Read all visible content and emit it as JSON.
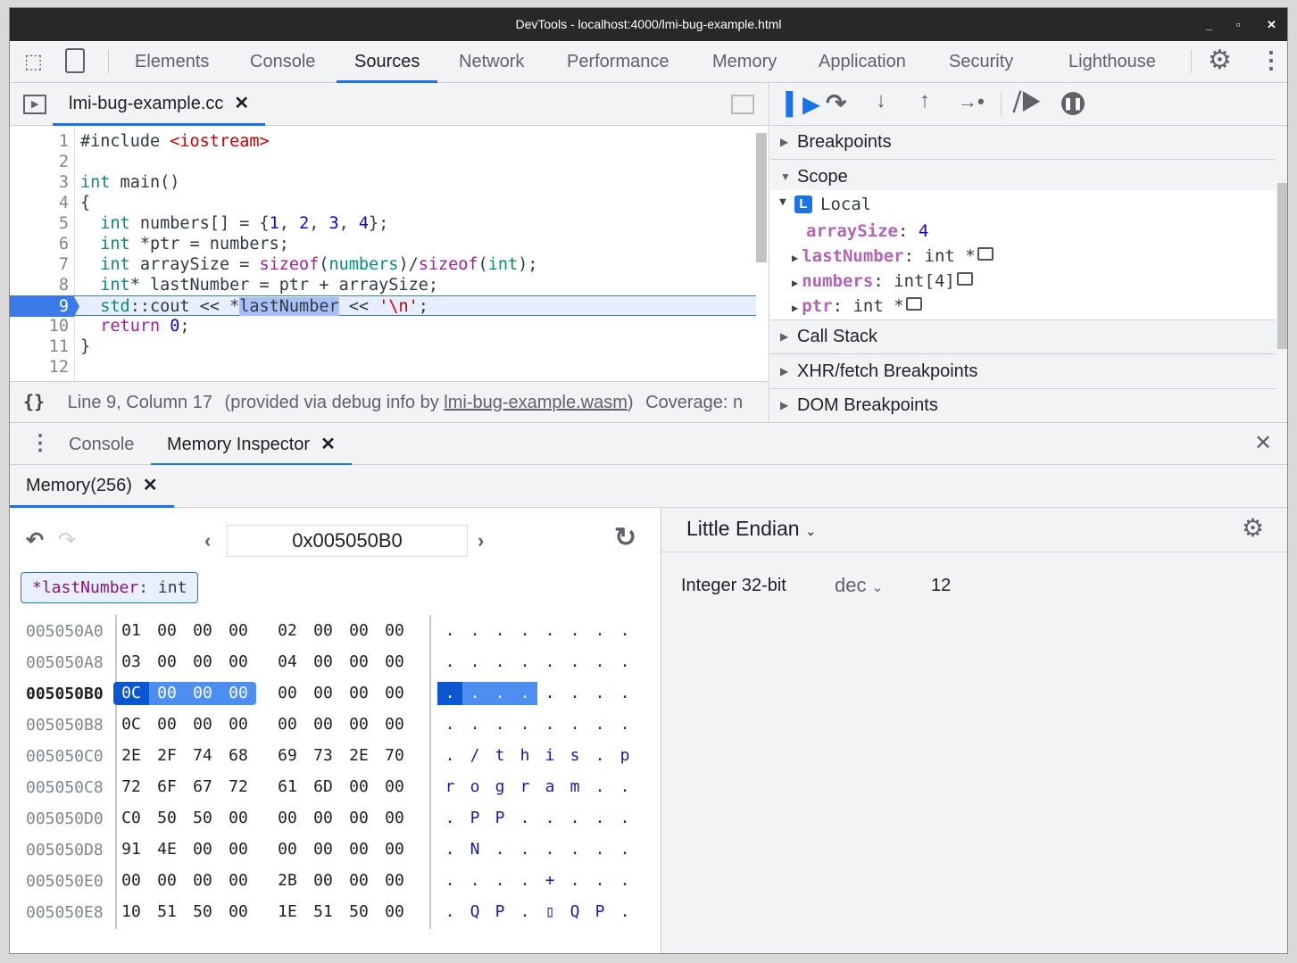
{
  "window": {
    "title": "DevTools - localhost:4000/lmi-bug-example.html"
  },
  "main_tabs": [
    "Elements",
    "Console",
    "Sources",
    "Network",
    "Performance",
    "Memory",
    "Application",
    "Security",
    "Lighthouse"
  ],
  "active_main_tab": "Sources",
  "editor": {
    "file_tab": "lmi-bug-example.cc",
    "current_line": 9,
    "lines": [
      [
        [
          "#include ",
          ""
        ],
        [
          "<iostream>",
          "str"
        ]
      ],
      [],
      [
        [
          "int",
          "kw"
        ],
        [
          " main()",
          ""
        ]
      ],
      [
        [
          "{",
          ""
        ]
      ],
      [
        [
          "  ",
          ""
        ],
        [
          "int",
          "kw"
        ],
        [
          " numbers[] = {",
          ""
        ],
        [
          "1",
          "num"
        ],
        [
          ", ",
          ""
        ],
        [
          "2",
          "num"
        ],
        [
          ", ",
          ""
        ],
        [
          "3",
          "num"
        ],
        [
          ", ",
          ""
        ],
        [
          "4",
          "num"
        ],
        [
          "};",
          ""
        ]
      ],
      [
        [
          "  ",
          ""
        ],
        [
          "int",
          "kw"
        ],
        [
          " *ptr = numbers;",
          ""
        ]
      ],
      [
        [
          "  ",
          ""
        ],
        [
          "int",
          "kw"
        ],
        [
          " arraySize = ",
          ""
        ],
        [
          "sizeof",
          "fn"
        ],
        [
          "(",
          ""
        ],
        [
          "numbers",
          "kw"
        ],
        [
          ")/",
          ""
        ],
        [
          "sizeof",
          "fn"
        ],
        [
          "(",
          ""
        ],
        [
          "int",
          "kw"
        ],
        [
          ");",
          ""
        ]
      ],
      [
        [
          "  ",
          ""
        ],
        [
          "int",
          "kw"
        ],
        [
          "* lastNumber = ptr + arraySize;",
          ""
        ]
      ],
      [
        [
          "  ",
          ""
        ],
        [
          "std",
          "kw"
        ],
        [
          "::cout << *",
          ""
        ],
        [
          "lastNumber",
          "sel"
        ],
        [
          " << ",
          ""
        ],
        [
          "'\\n'",
          "str"
        ],
        [
          ";",
          ""
        ]
      ],
      [
        [
          "  ",
          ""
        ],
        [
          "return",
          "fn"
        ],
        [
          " ",
          ""
        ],
        [
          "0",
          "num"
        ],
        [
          ";",
          ""
        ]
      ],
      [
        [
          "}",
          ""
        ]
      ],
      []
    ]
  },
  "status": {
    "position": "Line 9, Column 17",
    "provided": "(provided via debug info by ",
    "wasm_link": "lmi-bug-example.wasm",
    "close": ")",
    "coverage": "Coverage: n"
  },
  "debugger": {
    "sections_top": [
      "Breakpoints",
      "Scope"
    ],
    "scope": {
      "badge": "L",
      "local_label": "Local",
      "vars": [
        {
          "name": "arraySize",
          "value": "4",
          "expandable": false
        },
        {
          "name": "lastNumber",
          "value": "int *",
          "expandable": true,
          "mem": true
        },
        {
          "name": "numbers",
          "value": "int[4]",
          "expandable": true,
          "mem": true
        },
        {
          "name": "ptr",
          "value": "int *",
          "expandable": true,
          "mem": true
        }
      ]
    },
    "sections_bottom": [
      "Call Stack",
      "XHR/fetch Breakpoints",
      "DOM Breakpoints"
    ]
  },
  "drawer": {
    "tabs": [
      "Console",
      "Memory Inspector"
    ],
    "active": "Memory Inspector"
  },
  "memory": {
    "tab": "Memory(256)",
    "address": "0x005050B0",
    "chip": {
      "name": "*lastNumber",
      "type": "int"
    },
    "rows": [
      {
        "addr": "005050A0",
        "bytes": [
          "01",
          "00",
          "00",
          "00",
          "02",
          "00",
          "00",
          "00"
        ],
        "ascii": [
          ".",
          ".",
          ".",
          ".",
          ".",
          ".",
          ".",
          "."
        ]
      },
      {
        "addr": "005050A8",
        "bytes": [
          "03",
          "00",
          "00",
          "00",
          "04",
          "00",
          "00",
          "00"
        ],
        "ascii": [
          ".",
          ".",
          ".",
          ".",
          ".",
          ".",
          ".",
          "."
        ]
      },
      {
        "addr": "005050B0",
        "bytes": [
          "0C",
          "00",
          "00",
          "00",
          "00",
          "00",
          "00",
          "00"
        ],
        "ascii": [
          ".",
          ".",
          ".",
          ".",
          ".",
          ".",
          ".",
          "."
        ],
        "current": true
      },
      {
        "addr": "005050B8",
        "bytes": [
          "0C",
          "00",
          "00",
          "00",
          "00",
          "00",
          "00",
          "00"
        ],
        "ascii": [
          ".",
          ".",
          ".",
          ".",
          ".",
          ".",
          ".",
          "."
        ]
      },
      {
        "addr": "005050C0",
        "bytes": [
          "2E",
          "2F",
          "74",
          "68",
          "69",
          "73",
          "2E",
          "70"
        ],
        "ascii": [
          ".",
          "/",
          "t",
          "h",
          "i",
          "s",
          ".",
          "p"
        ]
      },
      {
        "addr": "005050C8",
        "bytes": [
          "72",
          "6F",
          "67",
          "72",
          "61",
          "6D",
          "00",
          "00"
        ],
        "ascii": [
          "r",
          "o",
          "g",
          "r",
          "a",
          "m",
          ".",
          "."
        ]
      },
      {
        "addr": "005050D0",
        "bytes": [
          "C0",
          "50",
          "50",
          "00",
          "00",
          "00",
          "00",
          "00"
        ],
        "ascii": [
          ".",
          "P",
          "P",
          ".",
          ".",
          ".",
          ".",
          "."
        ]
      },
      {
        "addr": "005050D8",
        "bytes": [
          "91",
          "4E",
          "00",
          "00",
          "00",
          "00",
          "00",
          "00"
        ],
        "ascii": [
          ".",
          "N",
          ".",
          ".",
          ".",
          ".",
          ".",
          "."
        ]
      },
      {
        "addr": "005050E0",
        "bytes": [
          "00",
          "00",
          "00",
          "00",
          "2B",
          "00",
          "00",
          "00"
        ],
        "ascii": [
          ".",
          ".",
          ".",
          ".",
          "+",
          ".",
          ".",
          "."
        ]
      },
      {
        "addr": "005050E8",
        "bytes": [
          "10",
          "51",
          "50",
          "00",
          "1E",
          "51",
          "50",
          "00"
        ],
        "ascii": [
          ".",
          "Q",
          "P",
          ".",
          "▯",
          "Q",
          "P",
          "."
        ]
      }
    ],
    "endianness": "Little Endian",
    "value_type": "Integer 32-bit",
    "format": "dec",
    "value": "12"
  },
  "colors": {
    "accent": "#1a73e8",
    "highlight": "#0b57d0",
    "highlight_light": "#4d8ff0",
    "var_name": "#b464b4"
  }
}
